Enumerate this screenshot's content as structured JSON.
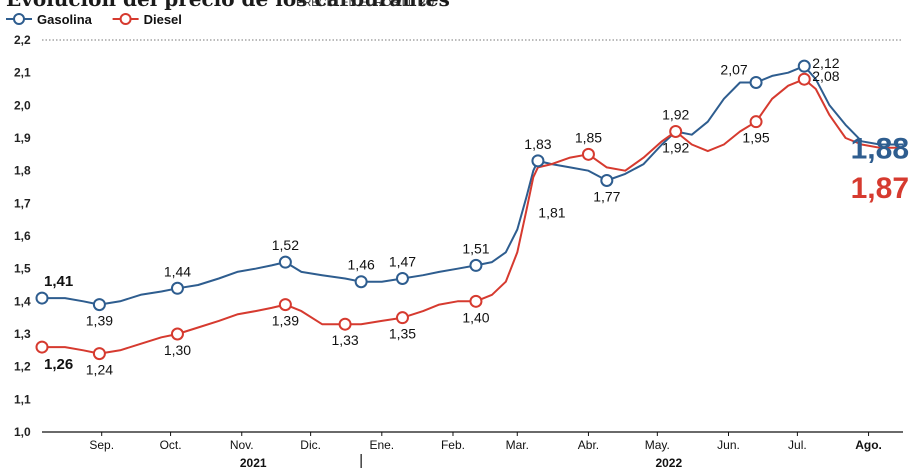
{
  "chart_data": {
    "type": "line",
    "title": "Evolución del precio de los carburantes",
    "subtitle": "PRECIO EN EUROS/LITRO",
    "ylim": [
      1.0,
      2.2
    ],
    "grid": false,
    "legend_position": "top-left",
    "y_ticks": [
      "2,2",
      "2,1",
      "2,0",
      "1,9",
      "1,8",
      "1,7",
      "1,6",
      "1,5",
      "1,4",
      "1,3",
      "1,2",
      "1,1",
      "1,0"
    ],
    "x_ticks": [
      {
        "label": "Sep.",
        "date": "2021-09-10",
        "bold": false
      },
      {
        "label": "Oct.",
        "date": "2021-10-10",
        "bold": false
      },
      {
        "label": "Nov.",
        "date": "2021-11-10",
        "bold": false
      },
      {
        "label": "Dic.",
        "date": "2021-12-10",
        "bold": false
      },
      {
        "label": "Ene.",
        "date": "2022-01-10",
        "bold": false
      },
      {
        "label": "Feb.",
        "date": "2022-02-10",
        "bold": false
      },
      {
        "label": "Mar.",
        "date": "2022-03-10",
        "bold": false
      },
      {
        "label": "Abr.",
        "date": "2022-04-10",
        "bold": false
      },
      {
        "label": "May.",
        "date": "2022-05-10",
        "bold": false
      },
      {
        "label": "Jun.",
        "date": "2022-06-10",
        "bold": false
      },
      {
        "label": "Jul.",
        "date": "2022-07-10",
        "bold": false
      },
      {
        "label": "Ago.",
        "date": "2022-08-10",
        "bold": true
      }
    ],
    "x_range": [
      "2021-08-15",
      "2022-08-25"
    ],
    "years": [
      {
        "label": "2021",
        "date": "2021-11-15"
      },
      {
        "label": "2022",
        "date": "2022-05-15"
      }
    ],
    "year_divider_date": "2022-01-01",
    "series": [
      {
        "name": "Gasolina",
        "color": "#2e5d8f",
        "final_label": "1,88",
        "points": [
          [
            "2021-08-15",
            1.41
          ],
          [
            "2021-08-25",
            1.41
          ],
          [
            "2021-09-02",
            1.4
          ],
          [
            "2021-09-09",
            1.39
          ],
          [
            "2021-09-18",
            1.4
          ],
          [
            "2021-09-27",
            1.42
          ],
          [
            "2021-10-06",
            1.43
          ],
          [
            "2021-10-13",
            1.44
          ],
          [
            "2021-10-22",
            1.45
          ],
          [
            "2021-10-31",
            1.47
          ],
          [
            "2021-11-08",
            1.49
          ],
          [
            "2021-11-16",
            1.5
          ],
          [
            "2021-11-23",
            1.51
          ],
          [
            "2021-11-29",
            1.52
          ],
          [
            "2021-12-06",
            1.49
          ],
          [
            "2021-12-15",
            1.48
          ],
          [
            "2021-12-25",
            1.47
          ],
          [
            "2022-01-01",
            1.46
          ],
          [
            "2022-01-10",
            1.46
          ],
          [
            "2022-01-19",
            1.47
          ],
          [
            "2022-01-28",
            1.48
          ],
          [
            "2022-02-04",
            1.49
          ],
          [
            "2022-02-12",
            1.5
          ],
          [
            "2022-02-20",
            1.51
          ],
          [
            "2022-02-27",
            1.52
          ],
          [
            "2022-03-05",
            1.55
          ],
          [
            "2022-03-10",
            1.62
          ],
          [
            "2022-03-14",
            1.72
          ],
          [
            "2022-03-17",
            1.8
          ],
          [
            "2022-03-19",
            1.83
          ],
          [
            "2022-03-25",
            1.82
          ],
          [
            "2022-04-02",
            1.81
          ],
          [
            "2022-04-10",
            1.8
          ],
          [
            "2022-04-18",
            1.77
          ],
          [
            "2022-04-26",
            1.79
          ],
          [
            "2022-05-04",
            1.82
          ],
          [
            "2022-05-12",
            1.88
          ],
          [
            "2022-05-18",
            1.92
          ],
          [
            "2022-05-25",
            1.91
          ],
          [
            "2022-06-01",
            1.95
          ],
          [
            "2022-06-08",
            2.02
          ],
          [
            "2022-06-15",
            2.07
          ],
          [
            "2022-06-22",
            2.07
          ],
          [
            "2022-06-29",
            2.09
          ],
          [
            "2022-07-06",
            2.1
          ],
          [
            "2022-07-13",
            2.12
          ],
          [
            "2022-07-18",
            2.08
          ],
          [
            "2022-07-24",
            2.0
          ],
          [
            "2022-07-31",
            1.94
          ],
          [
            "2022-08-07",
            1.89
          ],
          [
            "2022-08-15",
            1.88
          ],
          [
            "2022-08-25",
            1.88
          ]
        ],
        "labels": [
          {
            "date": "2021-08-15",
            "value": 1.41,
            "text": "1,41",
            "bold": true,
            "pos": "above",
            "marker": true
          },
          {
            "date": "2021-09-09",
            "value": 1.39,
            "text": "1,39",
            "bold": false,
            "pos": "below",
            "marker": true
          },
          {
            "date": "2021-10-13",
            "value": 1.44,
            "text": "1,44",
            "bold": false,
            "pos": "above",
            "marker": true
          },
          {
            "date": "2021-11-29",
            "value": 1.52,
            "text": "1,52",
            "bold": false,
            "pos": "above",
            "marker": true
          },
          {
            "date": "2022-01-01",
            "value": 1.46,
            "text": "1,46",
            "bold": false,
            "pos": "above",
            "marker": true
          },
          {
            "date": "2022-01-19",
            "value": 1.47,
            "text": "1,47",
            "bold": false,
            "pos": "above",
            "marker": true
          },
          {
            "date": "2022-02-20",
            "value": 1.51,
            "text": "1,51",
            "bold": false,
            "pos": "above",
            "marker": true
          },
          {
            "date": "2022-03-19",
            "value": 1.83,
            "text": "1,83",
            "bold": false,
            "pos": "above",
            "marker": true
          },
          {
            "date": "2022-04-18",
            "value": 1.77,
            "text": "1,77",
            "bold": false,
            "pos": "below",
            "marker": true
          },
          {
            "date": "2022-05-18",
            "value": 1.92,
            "text": "1,92",
            "bold": false,
            "pos": "below",
            "marker": false
          },
          {
            "date": "2022-06-22",
            "value": 2.07,
            "text": "2,07",
            "bold": false,
            "pos": "above-left",
            "marker": true
          },
          {
            "date": "2022-07-13",
            "value": 2.12,
            "text": "2,12",
            "bold": false,
            "pos": "right",
            "marker": true
          }
        ]
      },
      {
        "name": "Diesel",
        "color": "#d63a2f",
        "final_label": "1,87",
        "points": [
          [
            "2021-08-15",
            1.26
          ],
          [
            "2021-08-25",
            1.26
          ],
          [
            "2021-09-02",
            1.25
          ],
          [
            "2021-09-09",
            1.24
          ],
          [
            "2021-09-18",
            1.25
          ],
          [
            "2021-09-27",
            1.27
          ],
          [
            "2021-10-06",
            1.29
          ],
          [
            "2021-10-13",
            1.3
          ],
          [
            "2021-10-22",
            1.32
          ],
          [
            "2021-10-31",
            1.34
          ],
          [
            "2021-11-08",
            1.36
          ],
          [
            "2021-11-16",
            1.37
          ],
          [
            "2021-11-23",
            1.38
          ],
          [
            "2021-11-29",
            1.39
          ],
          [
            "2021-12-06",
            1.37
          ],
          [
            "2021-12-15",
            1.33
          ],
          [
            "2021-12-25",
            1.33
          ],
          [
            "2022-01-01",
            1.33
          ],
          [
            "2022-01-10",
            1.34
          ],
          [
            "2022-01-19",
            1.35
          ],
          [
            "2022-01-28",
            1.37
          ],
          [
            "2022-02-04",
            1.39
          ],
          [
            "2022-02-12",
            1.4
          ],
          [
            "2022-02-20",
            1.4
          ],
          [
            "2022-02-27",
            1.42
          ],
          [
            "2022-03-05",
            1.46
          ],
          [
            "2022-03-10",
            1.55
          ],
          [
            "2022-03-14",
            1.68
          ],
          [
            "2022-03-17",
            1.78
          ],
          [
            "2022-03-19",
            1.81
          ],
          [
            "2022-03-25",
            1.82
          ],
          [
            "2022-04-02",
            1.84
          ],
          [
            "2022-04-10",
            1.85
          ],
          [
            "2022-04-18",
            1.81
          ],
          [
            "2022-04-26",
            1.8
          ],
          [
            "2022-05-04",
            1.84
          ],
          [
            "2022-05-12",
            1.89
          ],
          [
            "2022-05-18",
            1.92
          ],
          [
            "2022-05-25",
            1.88
          ],
          [
            "2022-06-01",
            1.86
          ],
          [
            "2022-06-08",
            1.88
          ],
          [
            "2022-06-15",
            1.92
          ],
          [
            "2022-06-22",
            1.95
          ],
          [
            "2022-06-29",
            2.02
          ],
          [
            "2022-07-06",
            2.06
          ],
          [
            "2022-07-13",
            2.08
          ],
          [
            "2022-07-18",
            2.05
          ],
          [
            "2022-07-24",
            1.97
          ],
          [
            "2022-07-31",
            1.9
          ],
          [
            "2022-08-07",
            1.88
          ],
          [
            "2022-08-15",
            1.87
          ],
          [
            "2022-08-25",
            1.87
          ]
        ],
        "labels": [
          {
            "date": "2021-08-15",
            "value": 1.26,
            "text": "1,26",
            "bold": true,
            "pos": "below-right",
            "marker": true
          },
          {
            "date": "2021-09-09",
            "value": 1.24,
            "text": "1,24",
            "bold": false,
            "pos": "below",
            "marker": true
          },
          {
            "date": "2021-10-13",
            "value": 1.3,
            "text": "1,30",
            "bold": false,
            "pos": "below",
            "marker": true
          },
          {
            "date": "2021-11-29",
            "value": 1.39,
            "text": "1,39",
            "bold": false,
            "pos": "below",
            "marker": true
          },
          {
            "date": "2021-12-25",
            "value": 1.33,
            "text": "1,33",
            "bold": false,
            "pos": "below",
            "marker": true
          },
          {
            "date": "2022-01-19",
            "value": 1.35,
            "text": "1,35",
            "bold": false,
            "pos": "below",
            "marker": true
          },
          {
            "date": "2022-02-20",
            "value": 1.4,
            "text": "1,40",
            "bold": false,
            "pos": "below",
            "marker": true
          },
          {
            "date": "2022-03-19",
            "value": 1.81,
            "text": "1,81",
            "bold": false,
            "pos": "below-far",
            "marker": false
          },
          {
            "date": "2022-04-10",
            "value": 1.85,
            "text": "1,85",
            "bold": false,
            "pos": "above",
            "marker": true
          },
          {
            "date": "2022-05-18",
            "value": 1.92,
            "text": "1,92",
            "bold": false,
            "pos": "above",
            "marker": true
          },
          {
            "date": "2022-06-22",
            "value": 1.95,
            "text": "1,95",
            "bold": false,
            "pos": "below",
            "marker": true
          },
          {
            "date": "2022-07-13",
            "value": 2.08,
            "text": "2,08",
            "bold": false,
            "pos": "right",
            "marker": true
          }
        ]
      }
    ]
  }
}
